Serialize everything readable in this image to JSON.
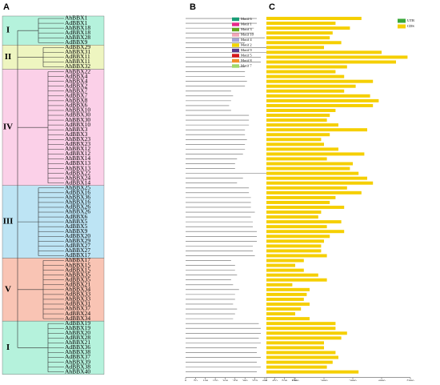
{
  "panels": [
    "A",
    "B",
    "C"
  ],
  "clades": [
    {
      "label": "I",
      "color": "#b5f2dc",
      "genes": [
        {
          "name": "AhBBX1",
          "protein_length": 360,
          "gene_length": 3300
        },
        {
          "name": "AdBBX1",
          "protein_length": 360,
          "gene_length": 2400
        },
        {
          "name": "AhBBX18",
          "protein_length": 345,
          "gene_length": 2900
        },
        {
          "name": "AdBBX18",
          "protein_length": 345,
          "gene_length": 2300
        },
        {
          "name": "AhBBX28",
          "protein_length": 400,
          "gene_length": 2200
        },
        {
          "name": "AdBBX9",
          "protein_length": 300,
          "gene_length": 2600
        }
      ]
    },
    {
      "label": "II",
      "color": "#eef5c0",
      "genes": [
        {
          "name": "AdBBX29",
          "protein_length": 440,
          "gene_length": 2000
        },
        {
          "name": "AhBBX31",
          "protein_length": 445,
          "gene_length": 4000
        },
        {
          "name": "AdBBX11",
          "protein_length": 380,
          "gene_length": 4900
        },
        {
          "name": "AhBBX11",
          "protein_length": 380,
          "gene_length": 4500
        },
        {
          "name": "AhBBX32",
          "protein_length": 300,
          "gene_length": 2800
        }
      ]
    },
    {
      "label": "IV",
      "color": "#fbd0e8",
      "genes": [
        {
          "name": "AhBBX22",
          "protein_length": 300,
          "gene_length": 2400
        },
        {
          "name": "AdBBX4",
          "protein_length": 300,
          "gene_length": 2700
        },
        {
          "name": "AhBBX4",
          "protein_length": 310,
          "gene_length": 3700
        },
        {
          "name": "AdBBX2",
          "protein_length": 300,
          "gene_length": 3100
        },
        {
          "name": "AhBBX7",
          "protein_length": 230,
          "gene_length": 2700
        },
        {
          "name": "AdBBX7",
          "protein_length": 240,
          "gene_length": 3600
        },
        {
          "name": "AhBBX8",
          "protein_length": 230,
          "gene_length": 3900
        },
        {
          "name": "AdBBX6",
          "protein_length": 220,
          "gene_length": 3700
        },
        {
          "name": "AhBBX10",
          "protein_length": 230,
          "gene_length": 2400
        },
        {
          "name": "AdBBX30",
          "protein_length": 320,
          "gene_length": 2200
        },
        {
          "name": "AhBBX30",
          "protein_length": 320,
          "gene_length": 2100
        },
        {
          "name": "AdBBX10",
          "protein_length": 320,
          "gene_length": 2500
        },
        {
          "name": "AhBBX3",
          "protein_length": 300,
          "gene_length": 3500
        },
        {
          "name": "AdBBX3",
          "protein_length": 300,
          "gene_length": 2200
        },
        {
          "name": "AhBBX23",
          "protein_length": 310,
          "gene_length": 1900
        },
        {
          "name": "AdBBX23",
          "protein_length": 300,
          "gene_length": 2000
        },
        {
          "name": "AhBBX12",
          "protein_length": 300,
          "gene_length": 2500
        },
        {
          "name": "AdBBX12",
          "protein_length": 290,
          "gene_length": 3400
        },
        {
          "name": "AhBBX14",
          "protein_length": 260,
          "gene_length": 2100
        },
        {
          "name": "AdBBX13",
          "protein_length": 250,
          "gene_length": 3000
        },
        {
          "name": "AhBBX13",
          "protein_length": 250,
          "gene_length": 2900
        },
        {
          "name": "AdBBX22",
          "protein_length": 530,
          "gene_length": 3200
        },
        {
          "name": "AhBBX24",
          "protein_length": 290,
          "gene_length": 3500
        },
        {
          "name": "AdBBX14",
          "protein_length": 260,
          "gene_length": 3700
        }
      ]
    },
    {
      "label": "III",
      "color": "#bde4f4",
      "genes": [
        {
          "name": "AhBBX25",
          "protein_length": 320,
          "gene_length": 2800
        },
        {
          "name": "AdBBX16",
          "protein_length": 320,
          "gene_length": 3300
        },
        {
          "name": "AhBBX36",
          "protein_length": 330,
          "gene_length": 2400
        },
        {
          "name": "AhBBX16",
          "protein_length": 330,
          "gene_length": 2200
        },
        {
          "name": "AdBBX26",
          "protein_length": 330,
          "gene_length": 2700
        },
        {
          "name": "AhBBX26",
          "protein_length": 350,
          "gene_length": 1900
        },
        {
          "name": "AdBBX6",
          "protein_length": 330,
          "gene_length": 1800
        },
        {
          "name": "AhBBX5",
          "protein_length": 340,
          "gene_length": 2600
        },
        {
          "name": "AdBBX5",
          "protein_length": 340,
          "gene_length": 2100
        },
        {
          "name": "AhBBX9",
          "protein_length": 360,
          "gene_length": 2700
        },
        {
          "name": "AdBBX20",
          "protein_length": 360,
          "gene_length": 2200
        },
        {
          "name": "AhBBX29",
          "protein_length": 360,
          "gene_length": 2000
        },
        {
          "name": "AdBBX27",
          "protein_length": 340,
          "gene_length": 1900
        },
        {
          "name": "AhBBX27",
          "protein_length": 340,
          "gene_length": 1900
        },
        {
          "name": "AdBBX17",
          "protein_length": 350,
          "gene_length": 2100
        }
      ]
    },
    {
      "label": "V",
      "color": "#f9c4b4",
      "genes": [
        {
          "name": "AhBBX17",
          "protein_length": 230,
          "gene_length": 1300
        },
        {
          "name": "AhBBX15",
          "protein_length": 250,
          "gene_length": 1000
        },
        {
          "name": "AdBBX15",
          "protein_length": 250,
          "gene_length": 1300
        },
        {
          "name": "AhBBX35",
          "protein_length": 260,
          "gene_length": 1800
        },
        {
          "name": "AdBBX35",
          "protein_length": 230,
          "gene_length": 2100
        },
        {
          "name": "AdBBX21",
          "protein_length": 240,
          "gene_length": 900
        },
        {
          "name": "AhBBX34",
          "protein_length": 270,
          "gene_length": 1500
        },
        {
          "name": "AdBBX33",
          "protein_length": 250,
          "gene_length": 1400
        },
        {
          "name": "AhBBX33",
          "protein_length": 250,
          "gene_length": 1300
        },
        {
          "name": "AdBBX31",
          "protein_length": 240,
          "gene_length": 1500
        },
        {
          "name": "AhBBX37",
          "protein_length": 260,
          "gene_length": 1200
        },
        {
          "name": "AdBBX24",
          "protein_length": 250,
          "gene_length": 1000
        },
        {
          "name": "AdBBX34",
          "protein_length": 240,
          "gene_length": 1500
        }
      ]
    },
    {
      "label": "I",
      "color": "#b5f2dc",
      "genes": [
        {
          "name": "AdBBX19",
          "protein_length": 370,
          "gene_length": 2400
        },
        {
          "name": "AhBBX19",
          "protein_length": 380,
          "gene_length": 2400
        },
        {
          "name": "AhBBX20",
          "protein_length": 380,
          "gene_length": 2800
        },
        {
          "name": "AdBBX28",
          "protein_length": 370,
          "gene_length": 2600
        },
        {
          "name": "AhBBX21",
          "protein_length": 380,
          "gene_length": 2000
        },
        {
          "name": "AdBBX36",
          "protein_length": 360,
          "gene_length": 2000
        },
        {
          "name": "AhBBX38",
          "protein_length": 360,
          "gene_length": 2400
        },
        {
          "name": "AdBBX37",
          "protein_length": 380,
          "gene_length": 2500
        },
        {
          "name": "AhBBX39",
          "protein_length": 360,
          "gene_length": 2300
        },
        {
          "name": "AdBBX38",
          "protein_length": 380,
          "gene_length": 2100
        },
        {
          "name": "AhBBX40",
          "protein_length": 360,
          "gene_length": 3200
        }
      ]
    }
  ],
  "motif_axis": {
    "xlim": [
      0,
      550
    ],
    "xticks": [
      0,
      50,
      100,
      150,
      200,
      250,
      300,
      350,
      400,
      450,
      500,
      550
    ],
    "color": "#666666"
  },
  "structure_axis": {
    "xlim": [
      0,
      5000
    ],
    "xticks": [
      0,
      1000,
      2000,
      3000,
      4000,
      5000
    ]
  },
  "motif_legend": [
    {
      "name": "Motif 6",
      "color": "#1b9e77"
    },
    {
      "name": "Motif 1",
      "color": "#e7298a"
    },
    {
      "name": "Motif 3",
      "color": "#66a61e"
    },
    {
      "name": "Motif 10",
      "color": "#f4a6b8"
    },
    {
      "name": "Motif 4",
      "color": "#a6a6d8"
    },
    {
      "name": "Motif 2",
      "color": "#f2d500"
    },
    {
      "name": "Motif 9",
      "color": "#5b3a8c"
    },
    {
      "name": "Motif 5",
      "color": "#d7191c"
    },
    {
      "name": "Motif 8",
      "color": "#f28e2b"
    },
    {
      "name": "Motif 7",
      "color": "#9fd86c"
    }
  ],
  "structure_legend": [
    {
      "name": "UTR",
      "color": "#3aa83a"
    },
    {
      "name": "CDS",
      "color": "#f5cf00"
    }
  ]
}
